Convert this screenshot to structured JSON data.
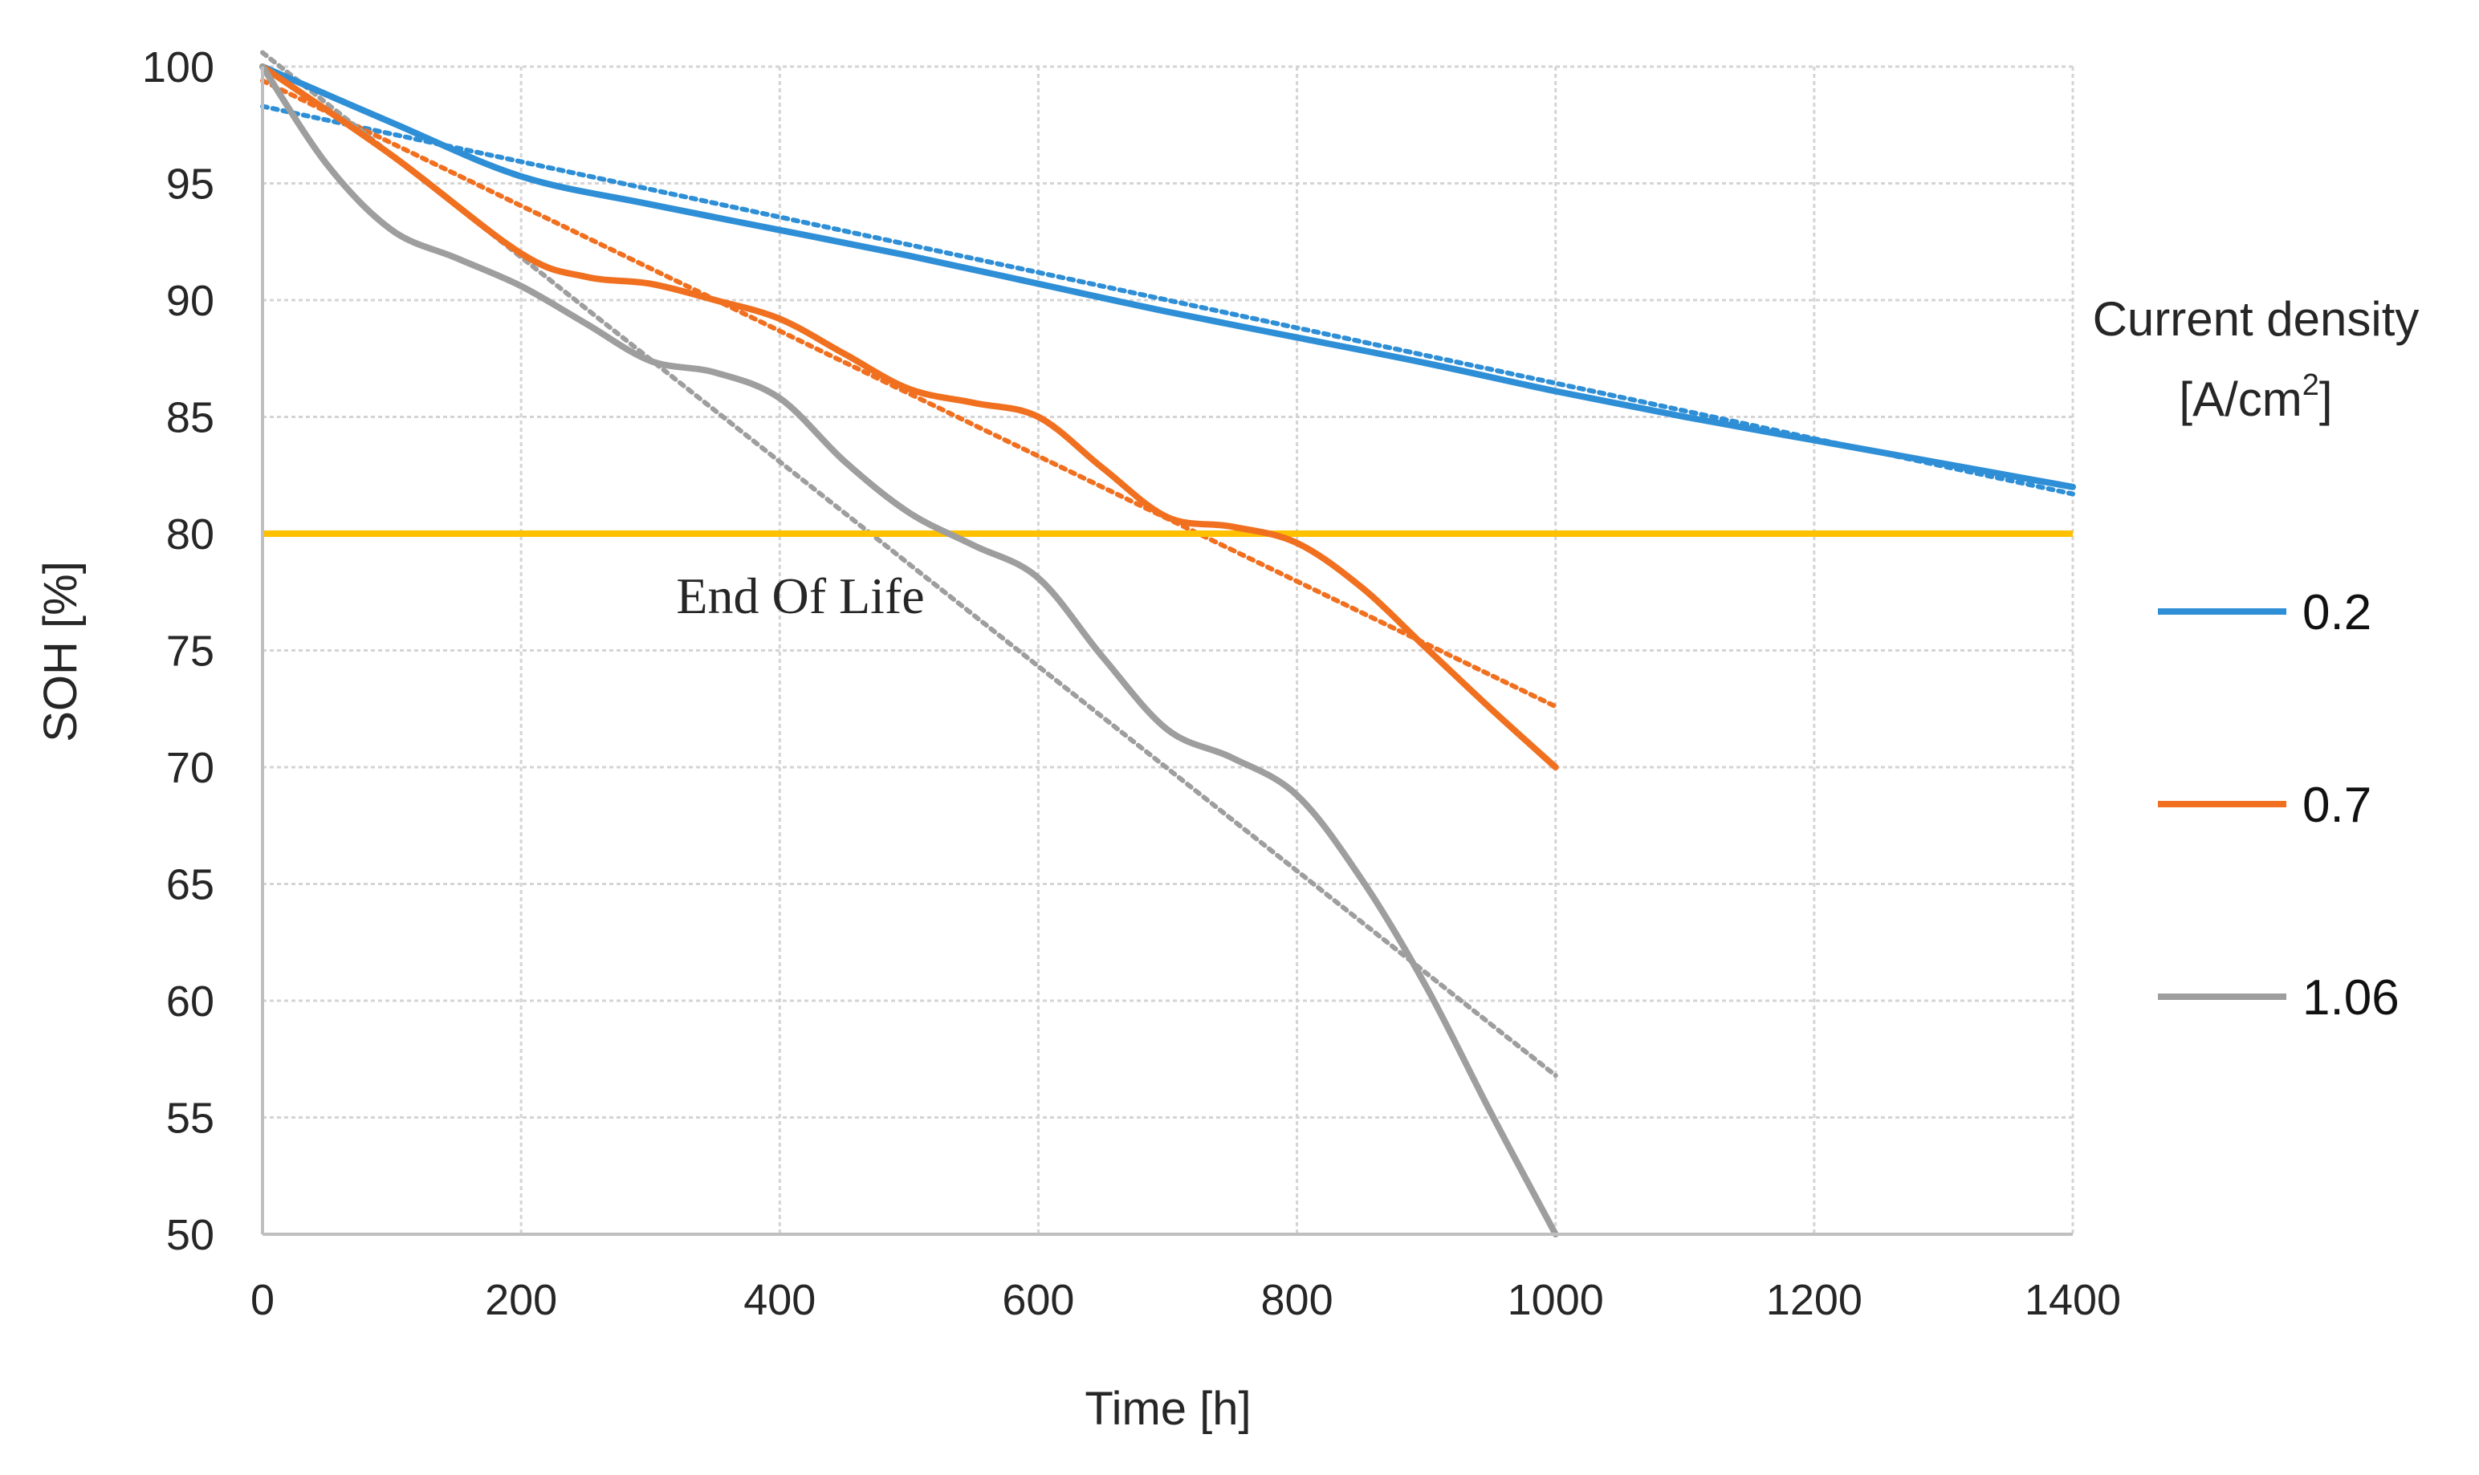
{
  "chart_data": {
    "type": "line",
    "title": "",
    "xlabel": "Time [h]",
    "ylabel": "SOH [%]",
    "xlim": [
      0,
      1400
    ],
    "ylim": [
      50,
      100
    ],
    "xticks": [
      0,
      200,
      400,
      600,
      800,
      1000,
      1200,
      1400
    ],
    "yticks": [
      50,
      55,
      60,
      65,
      70,
      75,
      80,
      85,
      90,
      95,
      100
    ],
    "grid": true,
    "legend": {
      "position": "right",
      "title_line1": "Current density",
      "title_line2_prefix": "[A/cm",
      "title_line2_sup": "2",
      "title_line2_suffix": "]"
    },
    "annotation": {
      "text": "End Of Life",
      "x": 320,
      "y": 76.6
    },
    "threshold": {
      "y": 80,
      "color": "#FFC000"
    },
    "series": [
      {
        "name": "0.2",
        "color": "#2E8FD6",
        "x": [
          0,
          100,
          200,
          300,
          400,
          500,
          600,
          700,
          800,
          900,
          1000,
          1100,
          1200,
          1300,
          1400
        ],
        "values": [
          100,
          97.6,
          95.3,
          94.1,
          93.0,
          91.9,
          90.7,
          89.5,
          88.4,
          87.3,
          86.1,
          85.0,
          84.0,
          83.0,
          82.0
        ],
        "trend": {
          "x": [
            0,
            1400
          ],
          "values": [
            98.3,
            81.7
          ]
        }
      },
      {
        "name": "0.7",
        "color": "#F07020",
        "x": [
          0,
          100,
          200,
          250,
          300,
          350,
          400,
          450,
          500,
          550,
          600,
          650,
          700,
          750,
          800,
          850,
          900,
          950,
          1000
        ],
        "values": [
          100,
          96.2,
          92.0,
          91.0,
          90.7,
          90.0,
          89.2,
          87.7,
          86.2,
          85.6,
          85.0,
          82.8,
          80.7,
          80.3,
          79.6,
          77.7,
          75.1,
          72.5,
          70.0
        ],
        "trend": {
          "x": [
            0,
            1000
          ],
          "values": [
            99.4,
            72.6
          ]
        }
      },
      {
        "name": "1.06",
        "color": "#9E9E9E",
        "x": [
          0,
          50,
          100,
          150,
          200,
          250,
          300,
          350,
          400,
          450,
          500,
          550,
          600,
          650,
          700,
          750,
          800,
          850,
          900,
          950,
          1000
        ],
        "values": [
          100,
          95.8,
          93.0,
          91.8,
          90.6,
          89.0,
          87.4,
          86.9,
          85.8,
          83.1,
          80.9,
          79.5,
          78.1,
          74.7,
          71.6,
          70.4,
          68.8,
          65.2,
          60.6,
          55.2,
          50.0
        ],
        "trend": {
          "x": [
            0,
            1000
          ],
          "values": [
            100.6,
            56.8
          ]
        }
      }
    ]
  }
}
